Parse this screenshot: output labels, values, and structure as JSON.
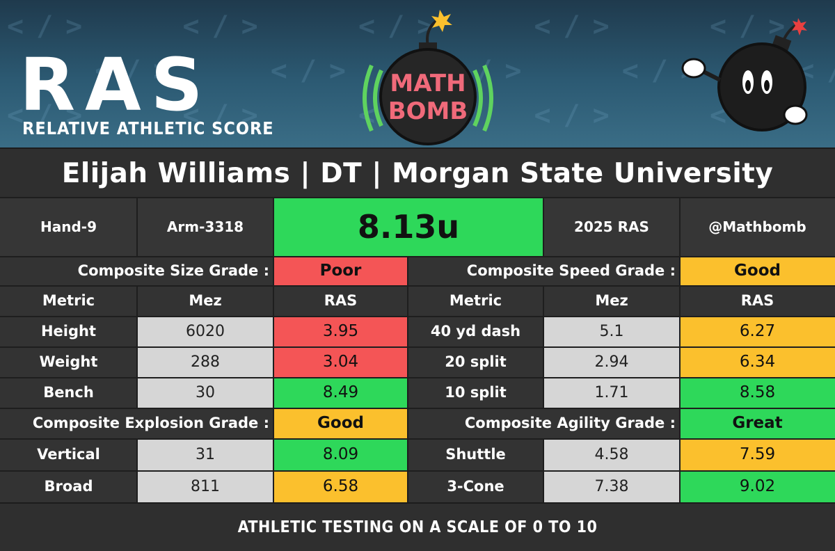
{
  "header": {
    "ras_logo_text": "RAS",
    "ras_logo_subtitle": "RELATIVE ATHLETIC SCORE",
    "mathbomb_logo_top": "MATH",
    "mathbomb_logo_bottom": "BOMB"
  },
  "title": "Elijah Williams | DT | Morgan State University",
  "info": {
    "hand": "Hand-9",
    "arm": "Arm-3318",
    "score": "8.13u",
    "year": "2025 RAS",
    "handle": "@Mathbomb"
  },
  "colors": {
    "poor": "#f45556",
    "good": "#fbc02d",
    "great": "#2ed85a",
    "mez_bg": "#d6d6d6",
    "dark_bg": "#363636"
  },
  "composites": {
    "size": {
      "label": "Composite Size Grade :",
      "grade": "Poor"
    },
    "speed": {
      "label": "Composite Speed Grade :",
      "grade": "Good"
    },
    "explosion": {
      "label": "Composite Explosion Grade :",
      "grade": "Good"
    },
    "agility": {
      "label": "Composite Agility Grade :",
      "grade": "Great"
    }
  },
  "headers": {
    "metric": "Metric",
    "mez": "Mez",
    "ras": "RAS"
  },
  "left_rows": [
    {
      "metric": "Height",
      "mez": "6020",
      "ras": "3.95",
      "level": "poor"
    },
    {
      "metric": "Weight",
      "mez": "288",
      "ras": "3.04",
      "level": "poor"
    },
    {
      "metric": "Bench",
      "mez": "30",
      "ras": "8.49",
      "level": "great"
    },
    {
      "metric": "Vertical",
      "mez": "31",
      "ras": "8.09",
      "level": "great"
    },
    {
      "metric": "Broad",
      "mez": "811",
      "ras": "6.58",
      "level": "good"
    }
  ],
  "right_rows": [
    {
      "metric": "40 yd dash",
      "mez": "5.1",
      "ras": "6.27",
      "level": "good"
    },
    {
      "metric": "20 split",
      "mez": "2.94",
      "ras": "6.34",
      "level": "good"
    },
    {
      "metric": "10 split",
      "mez": "1.71",
      "ras": "8.58",
      "level": "great"
    },
    {
      "metric": "Shuttle",
      "mez": "4.58",
      "ras": "7.59",
      "level": "good"
    },
    {
      "metric": "3-Cone",
      "mez": "7.38",
      "ras": "9.02",
      "level": "great"
    }
  ],
  "footer": "ATHLETIC TESTING ON A SCALE OF 0 TO 10"
}
